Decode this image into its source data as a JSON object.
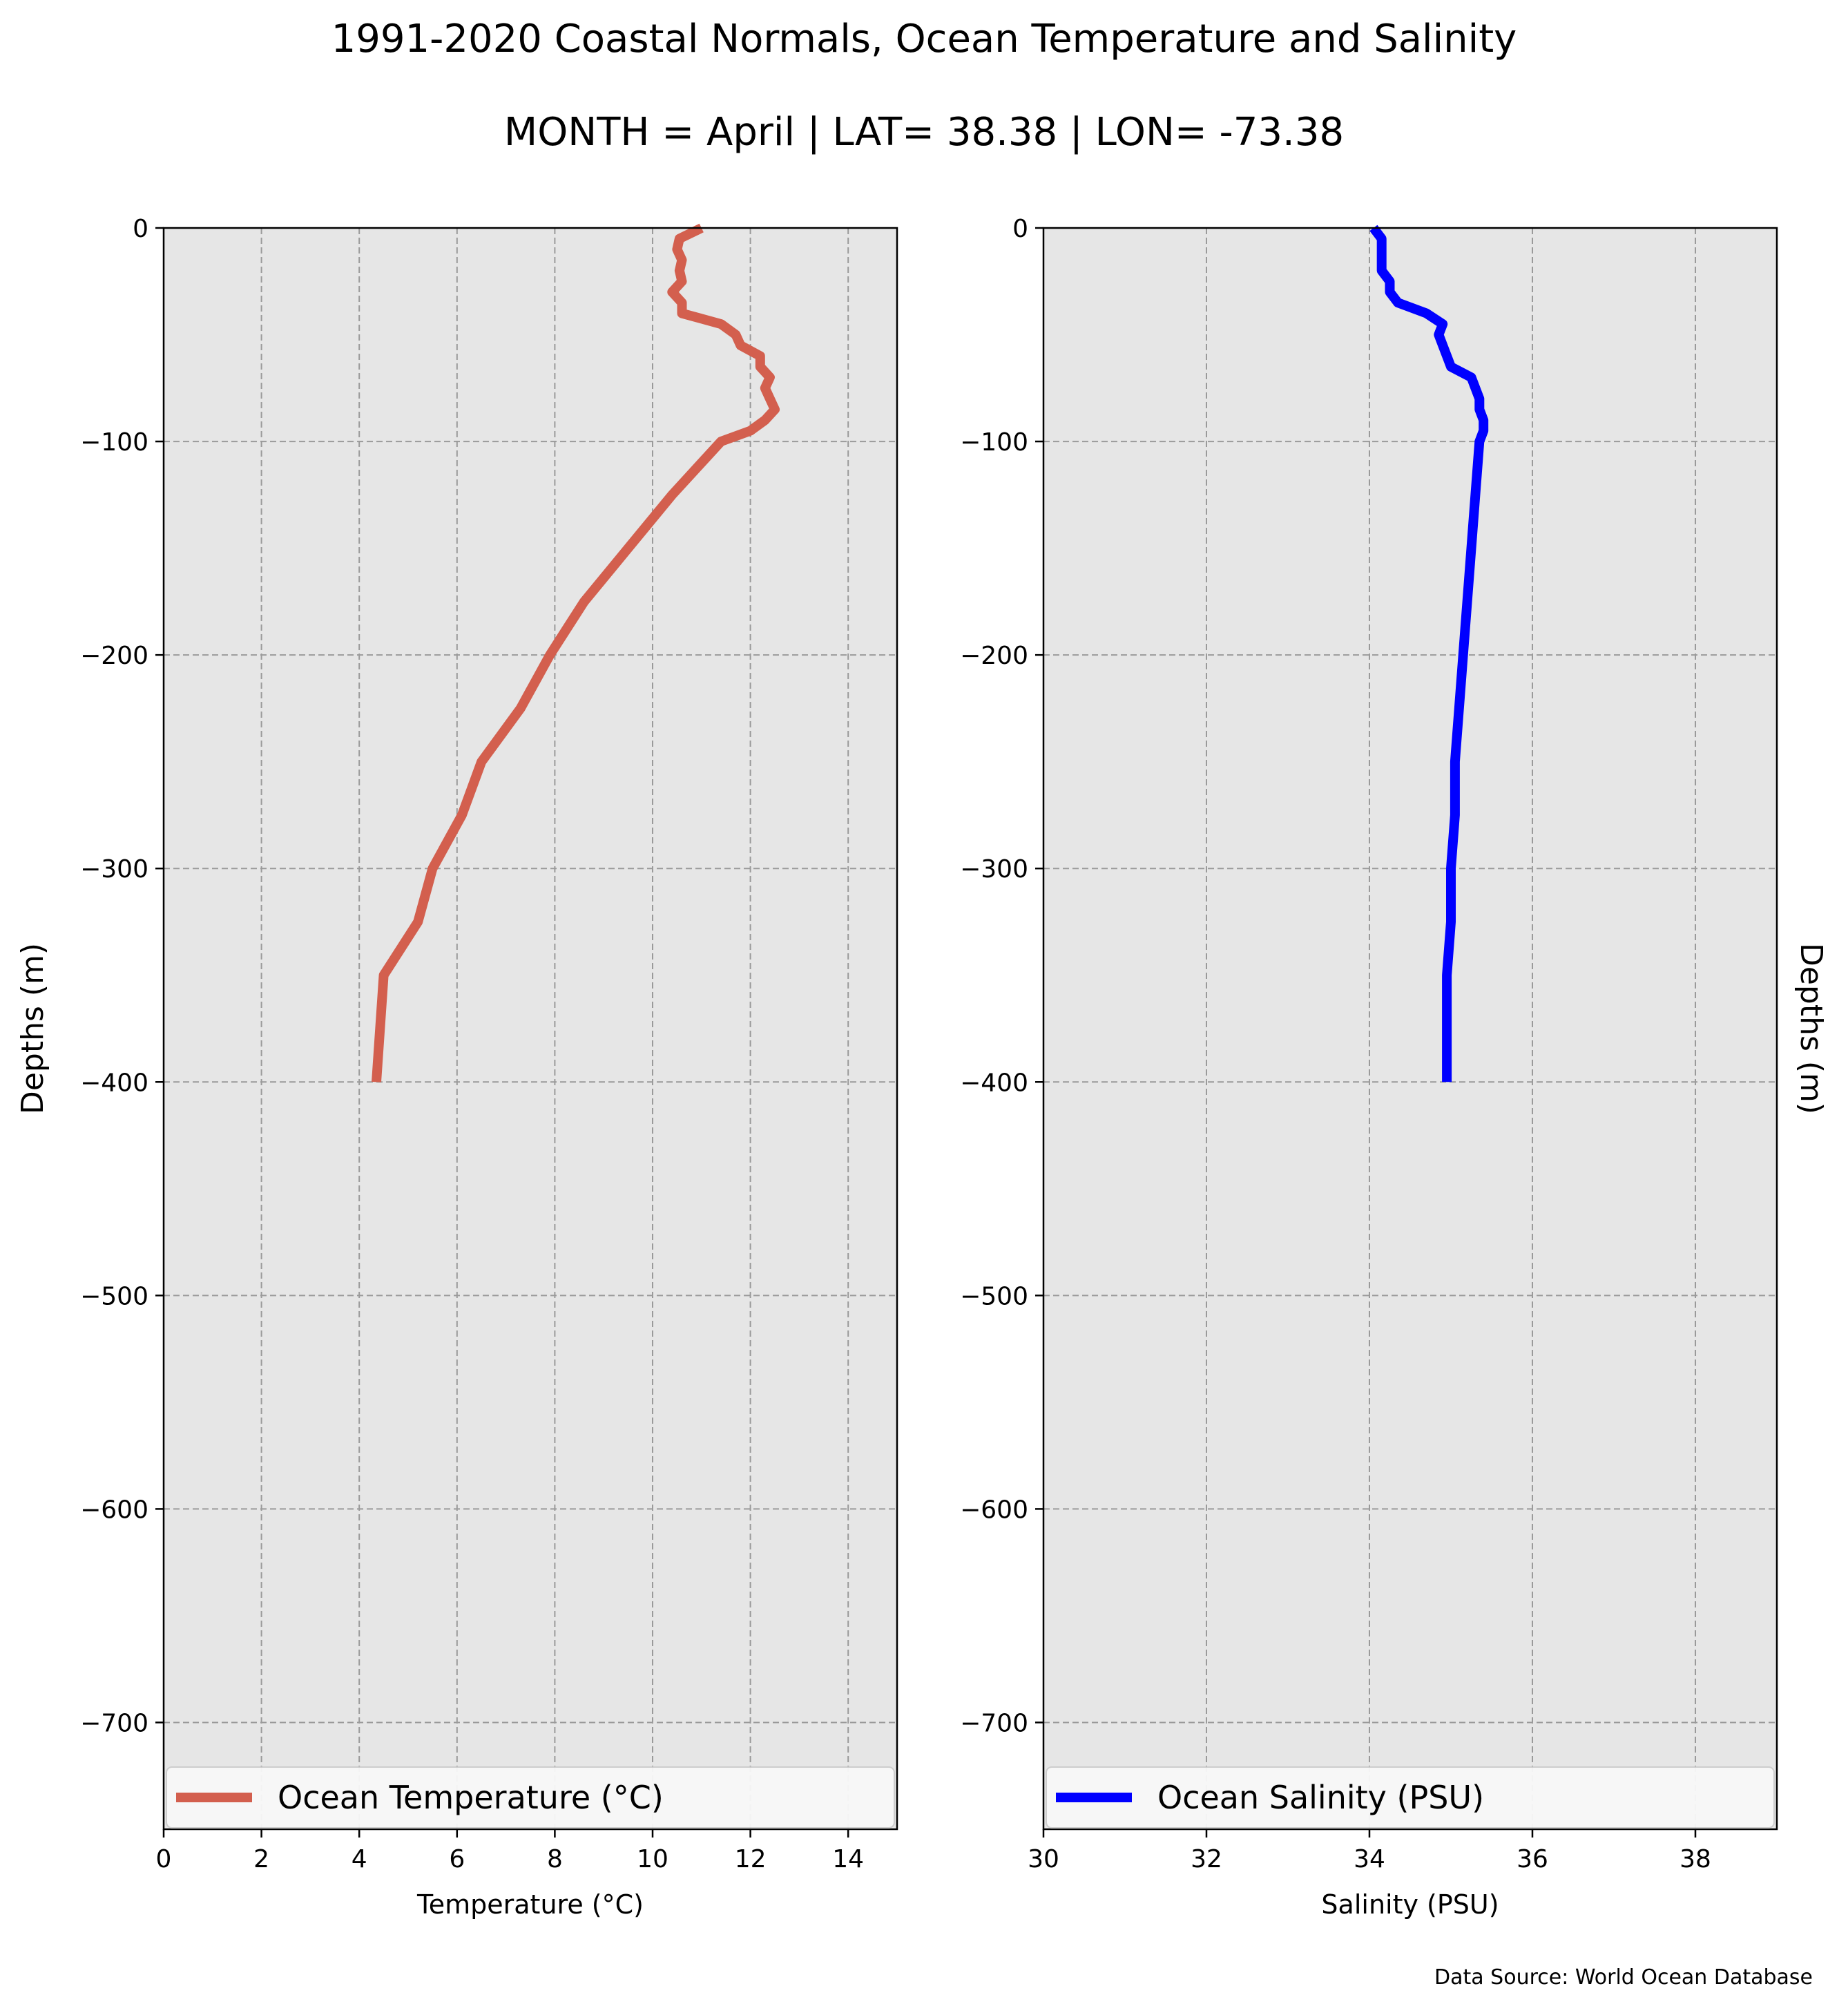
{
  "title": "1991-2020 Coastal Normals, Ocean Temperature and Salinity",
  "subtitle": "MONTH = April | LAT= 38.38 | LON= -73.38",
  "source": "Data Source: World Ocean Database",
  "colors": {
    "background": "#ffffff",
    "axes_face": "#e6e6e6",
    "temperature_line": "#d35f4e",
    "salinity_line": "#0000ff",
    "grid": "#9a9a9a",
    "legend_face": "#f8f8f8"
  },
  "chart_data": [
    {
      "type": "line",
      "xlabel": "Temperature (°C)",
      "ylabel": "Depths (m)",
      "ylabel_side": "left",
      "xlim": [
        0,
        15
      ],
      "ylim": [
        -750,
        0
      ],
      "xticks": [
        0,
        2,
        4,
        6,
        8,
        10,
        12,
        14
      ],
      "yticks": [
        0,
        -100,
        -200,
        -300,
        -400,
        -500,
        -600,
        -700
      ],
      "tick_labels_x": [
        "0",
        "2",
        "4",
        "6",
        "8",
        "10",
        "12",
        "14"
      ],
      "tick_labels_y": [
        "0",
        "−100",
        "−200",
        "−300",
        "−400",
        "−500",
        "−600",
        "−700"
      ],
      "grid": true,
      "legend_loc": "lower center",
      "series": [
        {
          "name": "Ocean Temperature (°C)",
          "color": "#d35f4e",
          "x": [
            11.0,
            10.55,
            10.5,
            10.6,
            10.55,
            10.6,
            10.4,
            10.6,
            10.6,
            11.4,
            11.7,
            11.8,
            12.2,
            12.2,
            12.4,
            12.3,
            12.4,
            12.5,
            12.3,
            12.0,
            11.4,
            10.4,
            9.5,
            8.6,
            7.9,
            7.3,
            6.5,
            6.1,
            5.5,
            5.2,
            4.5,
            4.35
          ],
          "y": [
            0,
            -5,
            -10,
            -15,
            -20,
            -25,
            -30,
            -35,
            -40,
            -45,
            -50,
            -55,
            -60,
            -65,
            -70,
            -75,
            -80,
            -85,
            -90,
            -95,
            -100,
            -125,
            -150,
            -175,
            -200,
            -225,
            -250,
            -275,
            -300,
            -325,
            -350,
            -400
          ]
        }
      ]
    },
    {
      "type": "line",
      "xlabel": "Salinity (PSU)",
      "ylabel": "Depths (m)",
      "ylabel_side": "right",
      "xlim": [
        30,
        39
      ],
      "ylim": [
        -750,
        0
      ],
      "xticks": [
        30,
        32,
        34,
        36,
        38
      ],
      "yticks": [
        0,
        -100,
        -200,
        -300,
        -400,
        -500,
        -600,
        -700
      ],
      "tick_labels_x": [
        "30",
        "32",
        "34",
        "36",
        "38"
      ],
      "tick_labels_y": [
        "0",
        "−100",
        "−200",
        "−300",
        "−400",
        "−500",
        "−600",
        "−700"
      ],
      "grid": true,
      "legend_loc": "lower center",
      "series": [
        {
          "name": "Ocean Salinity (PSU)",
          "color": "#0000ff",
          "x": [
            34.05,
            34.15,
            34.15,
            34.15,
            34.15,
            34.25,
            34.25,
            34.35,
            34.7,
            34.9,
            34.85,
            34.9,
            34.95,
            35.0,
            35.25,
            35.3,
            35.35,
            35.35,
            35.4,
            35.4,
            35.35,
            35.3,
            35.25,
            35.2,
            35.15,
            35.1,
            35.05,
            35.05,
            35.0,
            35.0,
            34.95,
            34.95
          ],
          "y": [
            0,
            -5,
            -10,
            -15,
            -20,
            -25,
            -30,
            -35,
            -40,
            -45,
            -50,
            -55,
            -60,
            -65,
            -70,
            -75,
            -80,
            -85,
            -90,
            -95,
            -100,
            -125,
            -150,
            -175,
            -200,
            -225,
            -250,
            -275,
            -300,
            -325,
            -350,
            -400
          ]
        }
      ]
    }
  ]
}
